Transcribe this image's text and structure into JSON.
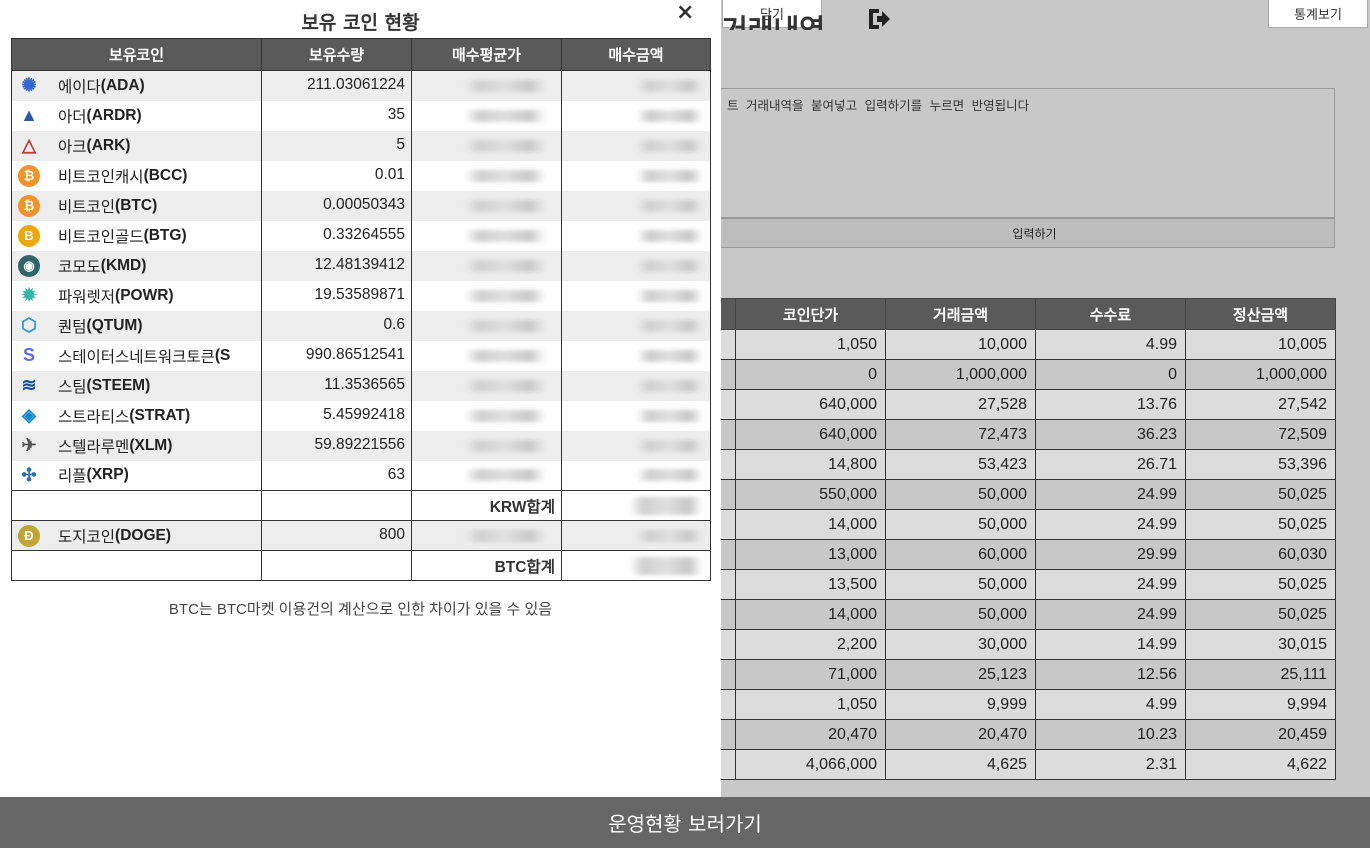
{
  "background": {
    "close_label": "닫기",
    "stats_label": "통계보기",
    "title_text": "거래내역",
    "paste_hint": "트 거래내역을 붙여넣고 입력하기를 누르면 반영됩니다",
    "input_label": "입력하기",
    "trade_headers": [
      "코인단가",
      "거래금액",
      "수수료",
      "정산금액"
    ],
    "trade_rows": [
      [
        "1,050",
        "10,000",
        "4.99",
        "10,005"
      ],
      [
        "0",
        "1,000,000",
        "0",
        "1,000,000"
      ],
      [
        "640,000",
        "27,528",
        "13.76",
        "27,542"
      ],
      [
        "640,000",
        "72,473",
        "36.23",
        "72,509"
      ],
      [
        "14,800",
        "53,423",
        "26.71",
        "53,396"
      ],
      [
        "550,000",
        "50,000",
        "24.99",
        "50,025"
      ],
      [
        "14,000",
        "50,000",
        "24.99",
        "50,025"
      ],
      [
        "13,000",
        "60,000",
        "29.99",
        "60,030"
      ],
      [
        "13,500",
        "50,000",
        "24.99",
        "50,025"
      ],
      [
        "14,000",
        "50,000",
        "24.99",
        "50,025"
      ],
      [
        "2,200",
        "30,000",
        "14.99",
        "30,015"
      ],
      [
        "71,000",
        "25,123",
        "12.56",
        "25,111"
      ],
      [
        "1,050",
        "9,999",
        "4.99",
        "9,994"
      ],
      [
        "20,470",
        "20,470",
        "10.23",
        "20,459"
      ],
      [
        "4,066,000",
        "4,625",
        "2.31",
        "4,622"
      ]
    ],
    "bottom_label": "운영현황 보러가기"
  },
  "modal": {
    "title": "보유 코인 현황",
    "close": "×",
    "headers": [
      "보유코인",
      "보유수량",
      "매수평균가",
      "매수금액"
    ],
    "coins": [
      {
        "name": "에이다",
        "symbol": "(ADA)",
        "qty": "211.03061224",
        "icon": "ada-icon",
        "color": "#3468d1"
      },
      {
        "name": "아더",
        "symbol": "(ARDR)",
        "qty": "35",
        "icon": "ardor-icon",
        "color": "#2b5aa8"
      },
      {
        "name": "아크",
        "symbol": "(ARK)",
        "qty": "5",
        "icon": "ark-icon",
        "color": "#c8352f"
      },
      {
        "name": "비트코인캐시",
        "symbol": "(BCC)",
        "qty": "0.01",
        "icon": "bitcoin-cash-icon",
        "color": "#f0932b"
      },
      {
        "name": "비트코인",
        "symbol": "(BTC)",
        "qty": "0.00050343",
        "icon": "bitcoin-icon",
        "color": "#f0932b"
      },
      {
        "name": "비트코인골드",
        "symbol": "(BTG)",
        "qty": "0.33264555",
        "icon": "bitcoin-gold-icon",
        "color": "#eba809"
      },
      {
        "name": "코모도",
        "symbol": "(KMD)",
        "qty": "12.48139412",
        "icon": "komodo-icon",
        "color": "#306565"
      },
      {
        "name": "파워렛저",
        "symbol": "(POWR)",
        "qty": "19.53589871",
        "icon": "powerledger-icon",
        "color": "#34b8a5"
      },
      {
        "name": "퀀텀",
        "symbol": "(QTUM)",
        "qty": "0.6",
        "icon": "qtum-icon",
        "color": "#2e9ad0"
      },
      {
        "name": "스테이터스네트워크토큰",
        "symbol": "(S",
        "qty": "990.86512541",
        "icon": "status-icon",
        "color": "#5b6dee"
      },
      {
        "name": "스팀",
        "symbol": "(STEEM)",
        "qty": "11.3536565",
        "icon": "steem-icon",
        "color": "#1a5099"
      },
      {
        "name": "스트라티스",
        "symbol": "(STRAT)",
        "qty": "5.45992418",
        "icon": "stratis-icon",
        "color": "#1387c9"
      },
      {
        "name": "스텔라루멘",
        "symbol": "(XLM)",
        "qty": "59.89221556",
        "icon": "stellar-icon",
        "color": "#555555"
      },
      {
        "name": "리플",
        "symbol": "(XRP)",
        "qty": "63",
        "icon": "ripple-icon",
        "color": "#2b6fb3"
      }
    ],
    "krw_total_label": "KRW합계",
    "doge": {
      "name": "도지코인",
      "symbol": "(DOGE)",
      "qty": "800",
      "icon": "dogecoin-icon",
      "color": "#c2a633"
    },
    "btc_total_label": "BTC합계",
    "footnote": "BTC는 BTC마켓 이용건의 계산으로 인한 차이가 있을 수 있음"
  }
}
